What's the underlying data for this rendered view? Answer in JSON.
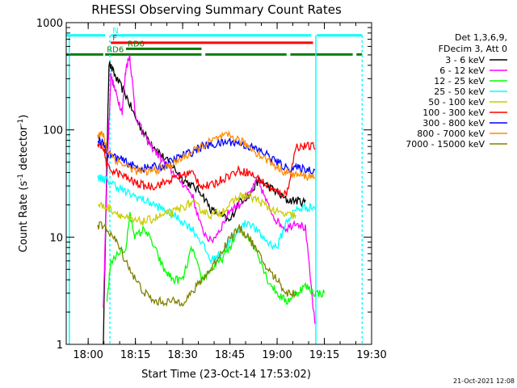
{
  "chart_data": {
    "type": "line",
    "title": "RHESSI Observing Summary Count Rates",
    "xlabel": "Start Time (23-Oct-14 17:53:02)",
    "ylabel_main": "Count Rate (s",
    "ylabel_sup": "-1",
    "ylabel_rest": " detector",
    "ylabel_sup2": "-1",
    "ylabel_close": ")",
    "yscale": "log",
    "xlim": [
      17.8839,
      19.5
    ],
    "ylim": [
      1,
      1000
    ],
    "x_ticks": [
      {
        "value": 18.0,
        "label": "18:00"
      },
      {
        "value": 18.25,
        "label": "18:15"
      },
      {
        "value": 18.5,
        "label": "18:30"
      },
      {
        "value": 18.75,
        "label": "18:45"
      },
      {
        "value": 19.0,
        "label": "19:00"
      },
      {
        "value": 19.25,
        "label": "19:15"
      },
      {
        "value": 19.5,
        "label": "19:30"
      }
    ],
    "y_ticks": [
      {
        "value": 1,
        "label": "1"
      },
      {
        "value": 10,
        "label": "10"
      },
      {
        "value": 100,
        "label": "100"
      },
      {
        "value": 1000,
        "label": "1000"
      }
    ],
    "legend_header": [
      "Det 1,3,6,9,",
      "FDecim 3, Att 0"
    ],
    "legend_position": "right",
    "timestamp": "21-Oct-2021 12:08",
    "flag_bars": [
      {
        "label": "N",
        "color": "#00ffff",
        "segments": [
          [
            17.8839,
            18.09
          ],
          [
            18.12,
            19.18
          ],
          [
            19.21,
            19.45
          ]
        ],
        "level": 760
      },
      {
        "label": "F",
        "color": "#ff0000",
        "segments": [
          [
            18.12,
            19.19
          ]
        ],
        "level": 650
      },
      {
        "label": "RD0",
        "color": "#008000",
        "segments": [
          [
            18.2,
            18.6
          ]
        ],
        "level": 570
      },
      {
        "label": "RD6",
        "color": "#008000",
        "segments": [
          [
            17.8839,
            18.08
          ],
          [
            18.09,
            18.6
          ],
          [
            18.62,
            19.05
          ],
          [
            19.07,
            19.4
          ],
          [
            19.42,
            19.45
          ]
        ],
        "level": 505
      }
    ],
    "vlines": [
      {
        "x": 17.9,
        "color": "#00ffff"
      },
      {
        "x": 18.115,
        "color": "#00ffff",
        "dashed": true
      },
      {
        "x": 19.205,
        "color": "#00ffff"
      },
      {
        "x": 19.45,
        "color": "#00ffff",
        "dashed": true
      }
    ],
    "series": [
      {
        "name": "3 - 6 keV",
        "color": "#000000",
        "points": [
          [
            18.08,
            1.0
          ],
          [
            18.1,
            60
          ],
          [
            18.11,
            420
          ],
          [
            18.15,
            300
          ],
          [
            18.2,
            210
          ],
          [
            18.25,
            130
          ],
          [
            18.3,
            90
          ],
          [
            18.35,
            70
          ],
          [
            18.4,
            55
          ],
          [
            18.45,
            45
          ],
          [
            18.5,
            35
          ],
          [
            18.55,
            30
          ],
          [
            18.6,
            26
          ],
          [
            18.65,
            18
          ],
          [
            18.7,
            16
          ],
          [
            18.75,
            14
          ],
          [
            18.8,
            22
          ],
          [
            18.85,
            24
          ],
          [
            18.9,
            34
          ],
          [
            18.95,
            30
          ],
          [
            19.0,
            26
          ],
          [
            19.05,
            22
          ],
          [
            19.1,
            22
          ],
          [
            19.15,
            21
          ]
        ]
      },
      {
        "name": "6 - 12 keV",
        "color": "#ff00ff",
        "points": [
          [
            18.08,
            2.2
          ],
          [
            18.1,
            40
          ],
          [
            18.12,
            320
          ],
          [
            18.15,
            210
          ],
          [
            18.18,
            150
          ],
          [
            18.2,
            380
          ],
          [
            18.22,
            500
          ],
          [
            18.25,
            140
          ],
          [
            18.3,
            85
          ],
          [
            18.35,
            65
          ],
          [
            18.4,
            50
          ],
          [
            18.45,
            40
          ],
          [
            18.5,
            32
          ],
          [
            18.55,
            25
          ],
          [
            18.6,
            12
          ],
          [
            18.65,
            9
          ],
          [
            18.7,
            12
          ],
          [
            18.75,
            18
          ],
          [
            18.8,
            20
          ],
          [
            18.85,
            25
          ],
          [
            18.9,
            34
          ],
          [
            18.95,
            20
          ],
          [
            19.0,
            14
          ],
          [
            19.05,
            12
          ],
          [
            19.1,
            14
          ],
          [
            19.15,
            12
          ],
          [
            19.2,
            1.5
          ]
        ]
      },
      {
        "name": "12 - 25 keV",
        "color": "#00ff00",
        "points": [
          [
            18.1,
            2.5
          ],
          [
            18.12,
            6
          ],
          [
            18.2,
            8
          ],
          [
            18.22,
            16
          ],
          [
            18.25,
            10
          ],
          [
            18.3,
            12
          ],
          [
            18.35,
            8
          ],
          [
            18.4,
            5
          ],
          [
            18.45,
            4
          ],
          [
            18.5,
            4
          ],
          [
            18.55,
            8
          ],
          [
            18.6,
            4
          ],
          [
            18.65,
            5
          ],
          [
            18.7,
            6
          ],
          [
            18.75,
            8
          ],
          [
            18.8,
            12
          ],
          [
            18.85,
            10
          ],
          [
            18.9,
            7
          ],
          [
            18.95,
            4
          ],
          [
            19.0,
            3
          ],
          [
            19.05,
            2.5
          ],
          [
            19.1,
            3
          ],
          [
            19.15,
            3.5
          ],
          [
            19.2,
            3
          ],
          [
            19.25,
            3
          ]
        ]
      },
      {
        "name": "25 - 50 keV",
        "color": "#00ffff",
        "points": [
          [
            18.05,
            36
          ],
          [
            18.08,
            35
          ],
          [
            18.1,
            34
          ],
          [
            18.15,
            30
          ],
          [
            18.2,
            26
          ],
          [
            18.25,
            24
          ],
          [
            18.3,
            22
          ],
          [
            18.35,
            20
          ],
          [
            18.4,
            18
          ],
          [
            18.45,
            16
          ],
          [
            18.5,
            14
          ],
          [
            18.55,
            12
          ],
          [
            18.6,
            9
          ],
          [
            18.65,
            6
          ],
          [
            18.7,
            7
          ],
          [
            18.75,
            9
          ],
          [
            18.8,
            12
          ],
          [
            18.85,
            14
          ],
          [
            18.9,
            11
          ],
          [
            18.95,
            9
          ],
          [
            19.0,
            8
          ],
          [
            19.05,
            14
          ],
          [
            19.1,
            18
          ],
          [
            19.15,
            19
          ],
          [
            19.2,
            19
          ]
        ]
      },
      {
        "name": "50 - 100 keV",
        "color": "#cccc00",
        "points": [
          [
            18.05,
            20
          ],
          [
            18.1,
            19
          ],
          [
            18.15,
            17
          ],
          [
            18.2,
            15
          ],
          [
            18.25,
            14
          ],
          [
            18.3,
            14
          ],
          [
            18.35,
            15
          ],
          [
            18.4,
            16
          ],
          [
            18.45,
            17
          ],
          [
            18.5,
            19
          ],
          [
            18.55,
            21
          ],
          [
            18.6,
            18
          ],
          [
            18.65,
            16
          ],
          [
            18.7,
            17
          ],
          [
            18.75,
            20
          ],
          [
            18.8,
            24
          ],
          [
            18.85,
            24
          ],
          [
            18.9,
            22
          ],
          [
            18.95,
            19
          ],
          [
            19.0,
            17
          ],
          [
            19.05,
            16
          ],
          [
            19.1,
            16
          ]
        ]
      },
      {
        "name": "100 - 300 keV",
        "color": "#ff0000",
        "points": [
          [
            18.05,
            70
          ],
          [
            18.08,
            70
          ],
          [
            18.1,
            45
          ],
          [
            18.15,
            40
          ],
          [
            18.2,
            36
          ],
          [
            18.25,
            32
          ],
          [
            18.3,
            30
          ],
          [
            18.35,
            30
          ],
          [
            18.4,
            32
          ],
          [
            18.45,
            35
          ],
          [
            18.5,
            38
          ],
          [
            18.55,
            40
          ],
          [
            18.6,
            30
          ],
          [
            18.65,
            30
          ],
          [
            18.7,
            34
          ],
          [
            18.75,
            38
          ],
          [
            18.8,
            42
          ],
          [
            18.85,
            40
          ],
          [
            18.9,
            35
          ],
          [
            18.95,
            30
          ],
          [
            19.0,
            26
          ],
          [
            19.05,
            25
          ],
          [
            19.1,
            70
          ],
          [
            19.15,
            70
          ],
          [
            19.2,
            70
          ]
        ]
      },
      {
        "name": "300 - 800 keV",
        "color": "#0000ff",
        "points": [
          [
            18.05,
            78
          ],
          [
            18.08,
            78
          ],
          [
            18.1,
            60
          ],
          [
            18.15,
            55
          ],
          [
            18.2,
            50
          ],
          [
            18.25,
            45
          ],
          [
            18.3,
            44
          ],
          [
            18.35,
            45
          ],
          [
            18.4,
            46
          ],
          [
            18.45,
            52
          ],
          [
            18.5,
            58
          ],
          [
            18.55,
            62
          ],
          [
            18.6,
            70
          ],
          [
            18.65,
            72
          ],
          [
            18.7,
            75
          ],
          [
            18.75,
            78
          ],
          [
            18.8,
            75
          ],
          [
            18.85,
            70
          ],
          [
            18.9,
            65
          ],
          [
            18.95,
            58
          ],
          [
            19.0,
            50
          ],
          [
            19.05,
            44
          ],
          [
            19.1,
            44
          ],
          [
            19.15,
            43
          ],
          [
            19.2,
            42
          ]
        ]
      },
      {
        "name": "800 - 7000 keV",
        "color": "#ff8c00",
        "points": [
          [
            18.05,
            90
          ],
          [
            18.08,
            90
          ],
          [
            18.1,
            65
          ],
          [
            18.15,
            52
          ],
          [
            18.2,
            46
          ],
          [
            18.25,
            42
          ],
          [
            18.3,
            40
          ],
          [
            18.35,
            42
          ],
          [
            18.4,
            44
          ],
          [
            18.45,
            48
          ],
          [
            18.5,
            55
          ],
          [
            18.55,
            62
          ],
          [
            18.6,
            70
          ],
          [
            18.65,
            78
          ],
          [
            18.7,
            85
          ],
          [
            18.75,
            88
          ],
          [
            18.8,
            80
          ],
          [
            18.85,
            70
          ],
          [
            18.9,
            60
          ],
          [
            18.95,
            52
          ],
          [
            19.0,
            45
          ],
          [
            19.05,
            40
          ],
          [
            19.1,
            38
          ],
          [
            19.15,
            37
          ],
          [
            19.2,
            37
          ]
        ]
      },
      {
        "name": "7000 - 15000 keV",
        "color": "#808000",
        "points": [
          [
            18.05,
            13
          ],
          [
            18.1,
            12
          ],
          [
            18.15,
            9
          ],
          [
            18.2,
            6
          ],
          [
            18.25,
            4
          ],
          [
            18.3,
            3
          ],
          [
            18.35,
            2.5
          ],
          [
            18.4,
            2.5
          ],
          [
            18.45,
            2.5
          ],
          [
            18.5,
            2.5
          ],
          [
            18.55,
            3
          ],
          [
            18.6,
            4
          ],
          [
            18.65,
            5
          ],
          [
            18.7,
            7
          ],
          [
            18.75,
            10
          ],
          [
            18.8,
            12
          ],
          [
            18.85,
            10
          ],
          [
            18.9,
            7
          ],
          [
            18.95,
            5
          ],
          [
            19.0,
            4
          ],
          [
            19.05,
            3
          ],
          [
            19.1,
            3
          ]
        ]
      }
    ]
  }
}
